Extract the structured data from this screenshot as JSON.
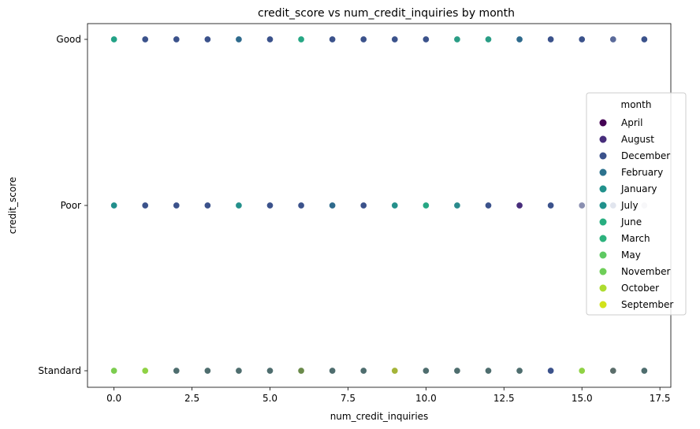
{
  "chart_data": {
    "type": "scatter",
    "title": "credit_score vs num_credit_inquiries by month",
    "xlabel": "num_credit_inquiries",
    "ylabel": "credit_score",
    "xlim": [
      -0.85,
      17.85
    ],
    "x_ticks": [
      0.0,
      2.5,
      5.0,
      7.5,
      10.0,
      12.5,
      15.0,
      17.5
    ],
    "x_tick_labels": [
      "0.0",
      "2.5",
      "5.0",
      "7.5",
      "10.0",
      "12.5",
      "15.0",
      "17.5"
    ],
    "y_categories": [
      "Good",
      "Poor",
      "Standard"
    ],
    "grid": false,
    "legend": {
      "title": "month",
      "placement": "center-right",
      "entries": [
        {
          "name": "April",
          "color": "#440154"
        },
        {
          "name": "August",
          "color": "#472d7b"
        },
        {
          "name": "December",
          "color": "#3b528b"
        },
        {
          "name": "February",
          "color": "#2c728e"
        },
        {
          "name": "January",
          "color": "#21918c"
        },
        {
          "name": "July",
          "color": "#21918c"
        },
        {
          "name": "June",
          "color": "#28ae80"
        },
        {
          "name": "March",
          "color": "#2db27d"
        },
        {
          "name": "May",
          "color": "#5ec962"
        },
        {
          "name": "November",
          "color": "#6ece58"
        },
        {
          "name": "October",
          "color": "#addc30"
        },
        {
          "name": "September",
          "color": "#d2e21b"
        }
      ]
    },
    "points": [
      {
        "x": 0,
        "y": "Good",
        "color": "#23a286"
      },
      {
        "x": 1,
        "y": "Good",
        "color": "#3b528b"
      },
      {
        "x": 2,
        "y": "Good",
        "color": "#3b528b"
      },
      {
        "x": 3,
        "y": "Good",
        "color": "#3b528b"
      },
      {
        "x": 4,
        "y": "Good",
        "color": "#2e6a8c"
      },
      {
        "x": 5,
        "y": "Good",
        "color": "#3b528b"
      },
      {
        "x": 6,
        "y": "Good",
        "color": "#26a784"
      },
      {
        "x": 7,
        "y": "Good",
        "color": "#3b528b"
      },
      {
        "x": 8,
        "y": "Good",
        "color": "#3b528b"
      },
      {
        "x": 9,
        "y": "Good",
        "color": "#3b528b"
      },
      {
        "x": 10,
        "y": "Good",
        "color": "#3b528b"
      },
      {
        "x": 11,
        "y": "Good",
        "color": "#2a9d85"
      },
      {
        "x": 12,
        "y": "Good",
        "color": "#2a9d85"
      },
      {
        "x": 13,
        "y": "Good",
        "color": "#2e6a8c"
      },
      {
        "x": 14,
        "y": "Good",
        "color": "#3b528b"
      },
      {
        "x": 15,
        "y": "Good",
        "color": "#3b528b"
      },
      {
        "x": 16,
        "y": "Good",
        "color": "#5a6a9a"
      },
      {
        "x": 17,
        "y": "Good",
        "color": "#3b528b"
      },
      {
        "x": 0,
        "y": "Poor",
        "color": "#218f8c"
      },
      {
        "x": 1,
        "y": "Poor",
        "color": "#3b528b"
      },
      {
        "x": 2,
        "y": "Poor",
        "color": "#3b528b"
      },
      {
        "x": 3,
        "y": "Poor",
        "color": "#3b528b"
      },
      {
        "x": 4,
        "y": "Poor",
        "color": "#24908b"
      },
      {
        "x": 5,
        "y": "Poor",
        "color": "#3b528b"
      },
      {
        "x": 6,
        "y": "Poor",
        "color": "#3b528b"
      },
      {
        "x": 7,
        "y": "Poor",
        "color": "#2e6a8c"
      },
      {
        "x": 8,
        "y": "Poor",
        "color": "#3b528b"
      },
      {
        "x": 9,
        "y": "Poor",
        "color": "#24908b"
      },
      {
        "x": 10,
        "y": "Poor",
        "color": "#26a784"
      },
      {
        "x": 11,
        "y": "Poor",
        "color": "#2a8a8c"
      },
      {
        "x": 12,
        "y": "Poor",
        "color": "#3b528b"
      },
      {
        "x": 13,
        "y": "Poor",
        "color": "#472d7b"
      },
      {
        "x": 14,
        "y": "Poor",
        "color": "#3b528b"
      },
      {
        "x": 15,
        "y": "Poor",
        "color": "#8a8fb0"
      },
      {
        "x": 16,
        "y": "Poor",
        "color": "#3b528b"
      },
      {
        "x": 17,
        "y": "Poor",
        "color": "#c8cad8"
      },
      {
        "x": 0,
        "y": "Standard",
        "color": "#7ccd4f"
      },
      {
        "x": 1,
        "y": "Standard",
        "color": "#8fd244"
      },
      {
        "x": 2,
        "y": "Standard",
        "color": "#4e6d6e"
      },
      {
        "x": 3,
        "y": "Standard",
        "color": "#4e6d6e"
      },
      {
        "x": 4,
        "y": "Standard",
        "color": "#4e6d6e"
      },
      {
        "x": 5,
        "y": "Standard",
        "color": "#4e6d6e"
      },
      {
        "x": 6,
        "y": "Standard",
        "color": "#6a8a4a"
      },
      {
        "x": 7,
        "y": "Standard",
        "color": "#4e6d6e"
      },
      {
        "x": 8,
        "y": "Standard",
        "color": "#4e6d6e"
      },
      {
        "x": 9,
        "y": "Standard",
        "color": "#a4b438"
      },
      {
        "x": 10,
        "y": "Standard",
        "color": "#4e6d6e"
      },
      {
        "x": 11,
        "y": "Standard",
        "color": "#4e6d6e"
      },
      {
        "x": 12,
        "y": "Standard",
        "color": "#4e6d6e"
      },
      {
        "x": 13,
        "y": "Standard",
        "color": "#4e6d6e"
      },
      {
        "x": 14,
        "y": "Standard",
        "color": "#3b528b"
      },
      {
        "x": 15,
        "y": "Standard",
        "color": "#8fd244"
      },
      {
        "x": 16,
        "y": "Standard",
        "color": "#5a6d6a"
      },
      {
        "x": 17,
        "y": "Standard",
        "color": "#4e6d6e"
      }
    ]
  }
}
